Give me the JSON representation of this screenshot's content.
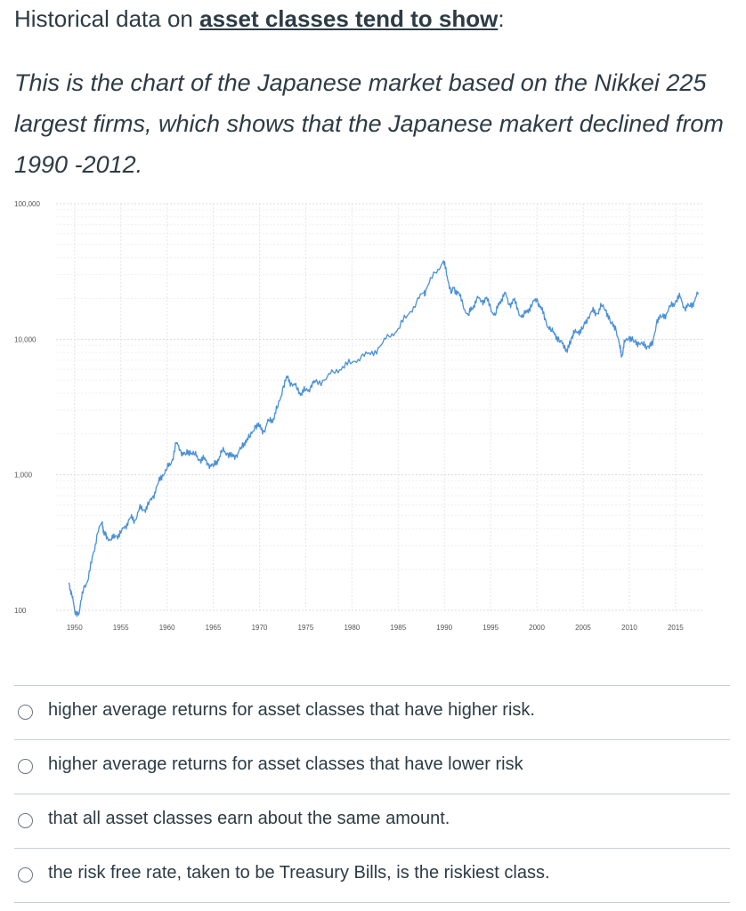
{
  "question": {
    "prefix": "Historical data on ",
    "link_text": "asset classes tend to show",
    "suffix": ":",
    "body": "This is the chart of the Japanese market based on the Nikkei 225 largest firms, which shows that the Japanese makert declined from 1990 -2012."
  },
  "chart_data": {
    "type": "line",
    "title": "",
    "xlabel": "",
    "ylabel": "",
    "y_scale": "log",
    "ylim": [
      100,
      100000
    ],
    "xlim": [
      1948,
      2018
    ],
    "y_ticks": [
      100,
      1000,
      10000,
      100000
    ],
    "y_tick_labels": [
      "100",
      "1,000",
      "10,000",
      "100,000"
    ],
    "x_ticks": [
      1950,
      1955,
      1960,
      1965,
      1970,
      1975,
      1980,
      1985,
      1990,
      1995,
      2000,
      2005,
      2010,
      2015
    ],
    "x_tick_labels": [
      "1950",
      "1955",
      "1960",
      "1965",
      "1970",
      "1975",
      "1980",
      "1985",
      "1990",
      "1995",
      "2000",
      "2005",
      "2010",
      "2015"
    ],
    "grid": true,
    "line_color": "#4a90d9",
    "series": [
      {
        "x": [
          1949.4,
          1949.7,
          1950.0,
          1950.5,
          1951.0,
          1951.5,
          1952.0,
          1952.5,
          1953.0,
          1953.2,
          1953.5,
          1954.0,
          1954.5,
          1955.0,
          1955.5,
          1956.0,
          1956.5,
          1957.0,
          1957.5,
          1958.0,
          1958.5,
          1959.0,
          1959.5,
          1960.0,
          1960.5,
          1961.0,
          1961.5,
          1962.0,
          1962.5,
          1963.0,
          1963.5,
          1964.0,
          1964.5,
          1965.0,
          1965.5,
          1966.0,
          1966.5,
          1967.0,
          1967.5,
          1968.0,
          1968.5,
          1969.0,
          1969.5,
          1970.0,
          1970.5,
          1971.0,
          1971.5,
          1972.0,
          1972.5,
          1973.0,
          1973.5,
          1974.0,
          1974.5,
          1975.0,
          1975.5,
          1976.0,
          1977.0,
          1978.0,
          1979.0,
          1980.0,
          1981.0,
          1982.0,
          1983.0,
          1984.0,
          1985.0,
          1986.0,
          1987.0,
          1987.8,
          1988.0,
          1989.0,
          1989.9,
          1990.3,
          1990.8,
          1991.0,
          1991.5,
          1992.0,
          1992.6,
          1993.0,
          1993.5,
          1994.0,
          1994.5,
          1995.0,
          1995.5,
          1996.0,
          1996.5,
          1997.0,
          1997.5,
          1998.0,
          1998.5,
          1999.0,
          1999.5,
          2000.0,
          2000.5,
          2001.0,
          2001.5,
          2002.0,
          2002.5,
          2003.0,
          2003.3,
          2003.8,
          2004.0,
          2004.5,
          2005.0,
          2005.5,
          2006.0,
          2006.5,
          2007.0,
          2007.5,
          2008.0,
          2008.5,
          2009.0,
          2009.2,
          2009.5,
          2010.0,
          2010.5,
          2011.0,
          2011.5,
          2012.0,
          2012.5,
          2013.0,
          2013.5,
          2014.0,
          2014.5,
          2015.0,
          2015.5,
          2016.0,
          2016.5,
          2017.0,
          2017.5
        ],
        "values": [
          160,
          130,
          100,
          95,
          150,
          170,
          260,
          370,
          450,
          360,
          350,
          330,
          355,
          370,
          420,
          480,
          460,
          560,
          550,
          600,
          700,
          850,
          1000,
          1100,
          1250,
          1700,
          1500,
          1400,
          1500,
          1400,
          1300,
          1300,
          1200,
          1150,
          1300,
          1500,
          1450,
          1350,
          1400,
          1550,
          1800,
          1900,
          2300,
          2250,
          2100,
          2500,
          2600,
          3200,
          4300,
          5200,
          4700,
          4400,
          4000,
          4200,
          4400,
          4800,
          5000,
          5700,
          6300,
          6700,
          7500,
          7700,
          8800,
          10500,
          12000,
          15000,
          19000,
          22000,
          23000,
          31000,
          38000,
          29000,
          22000,
          24000,
          22000,
          18000,
          15000,
          17000,
          20000,
          19000,
          20000,
          17000,
          15000,
          19000,
          22000,
          18000,
          19500,
          16000,
          14500,
          16500,
          18000,
          20000,
          16500,
          13500,
          11500,
          11000,
          9500,
          9000,
          8000,
          10500,
          11000,
          11500,
          12000,
          14500,
          16000,
          15500,
          17500,
          16500,
          13000,
          12500,
          8500,
          7500,
          9500,
          10500,
          9500,
          9500,
          9000,
          8900,
          9000,
          14000,
          14500,
          15500,
          17500,
          19000,
          20500,
          17000,
          17500,
          19000,
          22000
        ]
      }
    ]
  },
  "choices": [
    {
      "label": "higher average returns for asset classes that have higher risk."
    },
    {
      "label": "higher average returns for asset classes that have lower risk"
    },
    {
      "label": "that all asset classes earn about the same amount."
    },
    {
      "label": "the risk free rate, taken to be Treasury Bills, is the riskiest class."
    }
  ]
}
